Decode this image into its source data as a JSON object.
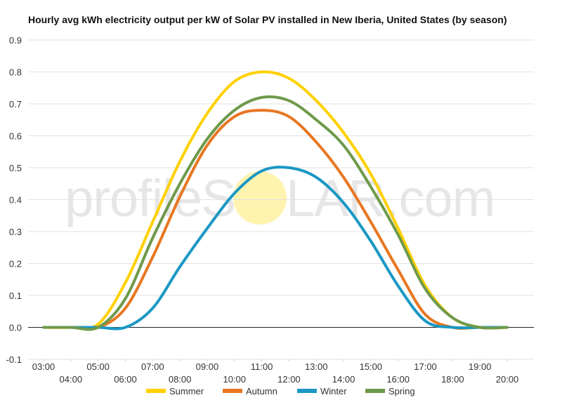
{
  "chart_data": {
    "type": "line",
    "title": "Hourly avg kWh electricity output per kW of Solar PV installed in New Iberia, United States (by season)",
    "xlabel": "",
    "ylabel": "",
    "ylim": [
      -0.1,
      0.9
    ],
    "yticks": [
      "-0.1",
      "0.0",
      "0.1",
      "0.2",
      "0.3",
      "0.4",
      "0.5",
      "0.6",
      "0.7",
      "0.8",
      "0.9"
    ],
    "x": [
      "03:00",
      "04:00",
      "05:00",
      "06:00",
      "07:00",
      "08:00",
      "09:00",
      "10:00",
      "11:00",
      "12:00",
      "13:00",
      "14:00",
      "15:00",
      "16:00",
      "17:00",
      "18:00",
      "19:00",
      "20:00"
    ],
    "grid": true,
    "legend_position": "bottom",
    "series": [
      {
        "name": "Summer",
        "color": "#FFD100",
        "values": [
          0.0,
          0.0,
          0.01,
          0.14,
          0.33,
          0.52,
          0.67,
          0.77,
          0.8,
          0.78,
          0.71,
          0.61,
          0.48,
          0.31,
          0.13,
          0.03,
          0.0,
          0.0
        ]
      },
      {
        "name": "Autumn",
        "color": "#E87722",
        "values": [
          0.0,
          0.0,
          0.0,
          0.06,
          0.22,
          0.41,
          0.57,
          0.66,
          0.68,
          0.66,
          0.58,
          0.47,
          0.33,
          0.18,
          0.04,
          0.0,
          0.0,
          0.0
        ]
      },
      {
        "name": "Winter",
        "color": "#1B98C4",
        "values": [
          0.0,
          0.0,
          0.0,
          0.0,
          0.06,
          0.19,
          0.31,
          0.42,
          0.49,
          0.5,
          0.47,
          0.39,
          0.27,
          0.13,
          0.02,
          0.0,
          0.0,
          0.0
        ]
      },
      {
        "name": "Spring",
        "color": "#6E9A4B",
        "values": [
          0.0,
          0.0,
          0.0,
          0.09,
          0.28,
          0.45,
          0.59,
          0.68,
          0.72,
          0.71,
          0.65,
          0.57,
          0.44,
          0.29,
          0.12,
          0.03,
          0.0,
          0.0
        ]
      }
    ]
  },
  "watermark": {
    "text_left": "profileS",
    "text_right": "LAR.com",
    "sun_color": "#FFF3B0"
  }
}
